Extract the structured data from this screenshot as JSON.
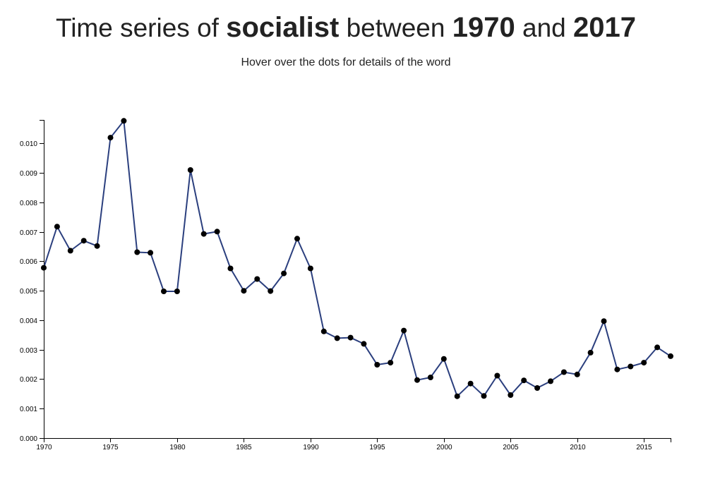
{
  "header": {
    "title_prefix": "Time series of",
    "word": "socialist",
    "title_between": "between",
    "start_year": "1970",
    "title_and": "and",
    "end_year": "2017",
    "subtitle": "Hover over the dots for details of the word"
  },
  "colors": {
    "line": "#2b3f7e",
    "dot": "#000000",
    "axis": "#000000"
  },
  "chart_data": {
    "type": "line",
    "title": "Time series of socialist between 1970 and 2017",
    "xlabel": "",
    "ylabel": "",
    "xlim": [
      1970,
      2017
    ],
    "ylim": [
      0,
      0.0108
    ],
    "grid": false,
    "x_ticks": [
      1970,
      1975,
      1980,
      1985,
      1990,
      1995,
      2000,
      2005,
      2010,
      2015
    ],
    "y_ticks": [
      "0.000",
      "0.001",
      "0.002",
      "0.003",
      "0.004",
      "0.005",
      "0.006",
      "0.007",
      "0.008",
      "0.009",
      "0.010"
    ],
    "series": [
      {
        "x": [
          1970,
          1971,
          1972,
          1973,
          1974,
          1975,
          1976,
          1977,
          1978,
          1979,
          1980,
          1981,
          1982,
          1983,
          1984,
          1985,
          1986,
          1987,
          1988,
          1989,
          1990,
          1991,
          1992,
          1993,
          1994,
          1995,
          1996,
          1997,
          1998,
          1999,
          2000,
          2001,
          2002,
          2003,
          2004,
          2005,
          2006,
          2007,
          2008,
          2009,
          2010,
          2011,
          2012,
          2013,
          2014,
          2015,
          2016,
          2017
        ],
        "values": [
          0.00578,
          0.00718,
          0.00636,
          0.0067,
          0.00652,
          0.0102,
          0.01077,
          0.00631,
          0.00629,
          0.00498,
          0.00498,
          0.0091,
          0.00693,
          0.00701,
          0.00576,
          0.005,
          0.0054,
          0.00499,
          0.00559,
          0.00677,
          0.00576,
          0.00362,
          0.00339,
          0.00341,
          0.0032,
          0.00249,
          0.00256,
          0.00365,
          0.00197,
          0.00206,
          0.00269,
          0.00142,
          0.00185,
          0.00143,
          0.00212,
          0.00146,
          0.00196,
          0.0017,
          0.00193,
          0.00224,
          0.00216,
          0.0029,
          0.00397,
          0.00233,
          0.00243,
          0.00256,
          0.00308,
          0.00278
        ]
      }
    ]
  }
}
